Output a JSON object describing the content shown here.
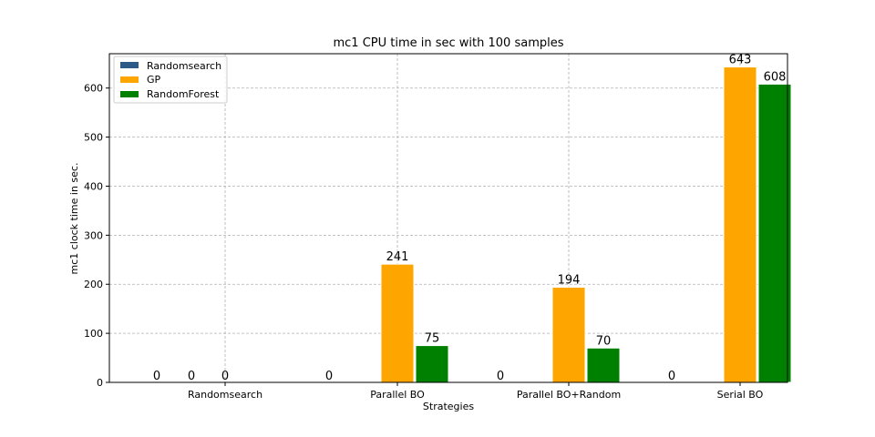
{
  "chart_data": {
    "type": "bar",
    "title": "mc1 CPU time in sec with 100 samples",
    "xlabel": "Strategies",
    "ylabel": "mc1 clock time in sec.",
    "categories": [
      "Randomsearch",
      "Parallel BO",
      "Parallel BO+Random",
      "Serial BO"
    ],
    "series": [
      {
        "name": "Randomsearch",
        "color": "#2e5a87",
        "values": [
          0,
          0,
          0,
          0
        ]
      },
      {
        "name": "GP",
        "color": "#ffa500",
        "values": [
          0,
          241,
          194,
          643
        ]
      },
      {
        "name": "RandomForest",
        "color": "#008000",
        "values": [
          0,
          75,
          70,
          608
        ]
      }
    ],
    "data_labels": [
      [
        "0",
        "0",
        "0"
      ],
      [
        "0",
        "241",
        "75"
      ],
      [
        "0",
        "194",
        "70"
      ],
      [
        "0",
        "643",
        "608"
      ]
    ],
    "ylim": [
      0,
      670
    ],
    "yticks": [
      0,
      100,
      200,
      300,
      400,
      500,
      600
    ],
    "grid": true,
    "legend_position": "top-left"
  }
}
